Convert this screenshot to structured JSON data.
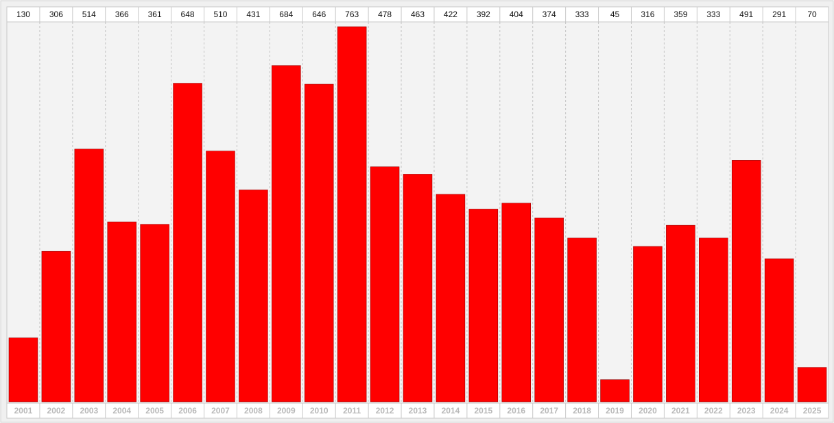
{
  "chart_data": {
    "type": "bar",
    "categories": [
      "2001",
      "2002",
      "2003",
      "2004",
      "2005",
      "2006",
      "2007",
      "2008",
      "2009",
      "2010",
      "2011",
      "2012",
      "2013",
      "2014",
      "2015",
      "2016",
      "2017",
      "2018",
      "2019",
      "2020",
      "2021",
      "2022",
      "2023",
      "2024",
      "2025"
    ],
    "values": [
      130,
      306,
      514,
      366,
      361,
      648,
      510,
      431,
      684,
      646,
      763,
      478,
      463,
      422,
      392,
      404,
      374,
      333,
      45,
      316,
      359,
      333,
      491,
      291,
      70
    ],
    "color": "#ff0000"
  }
}
